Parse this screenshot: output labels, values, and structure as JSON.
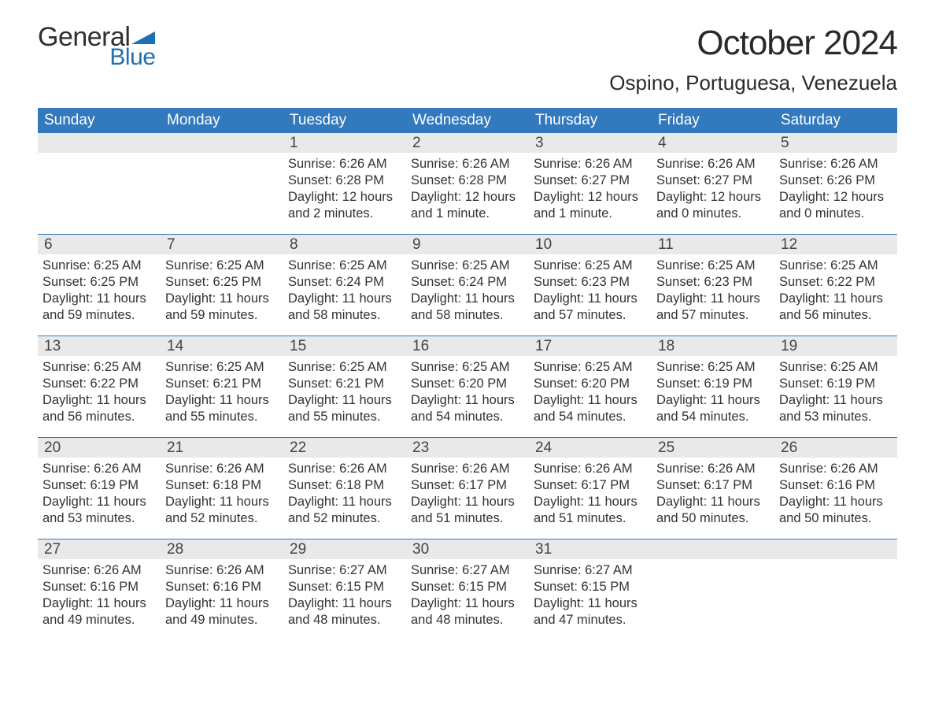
{
  "logo": {
    "text_top": "General",
    "text_bottom": "Blue",
    "text_top_color": "#2f2f2f",
    "text_bottom_color": "#1f6fb2",
    "flag_color": "#1f6fb2"
  },
  "header": {
    "month_title": "October 2024",
    "location": "Ospino, Portuguesa, Venezuela",
    "title_color": "#2a2a2a"
  },
  "calendar": {
    "header_bg": "#3279bd",
    "header_fg": "#ffffff",
    "daynum_bg": "#e9e9e9",
    "week_border_color": "#3279bd",
    "body_text_color": "#333333",
    "weekdays": [
      "Sunday",
      "Monday",
      "Tuesday",
      "Wednesday",
      "Thursday",
      "Friday",
      "Saturday"
    ],
    "weeks": [
      [
        {
          "num": "",
          "sunrise": "",
          "sunset": "",
          "daylight1": "",
          "daylight2": ""
        },
        {
          "num": "",
          "sunrise": "",
          "sunset": "",
          "daylight1": "",
          "daylight2": ""
        },
        {
          "num": "1",
          "sunrise": "Sunrise: 6:26 AM",
          "sunset": "Sunset: 6:28 PM",
          "daylight1": "Daylight: 12 hours",
          "daylight2": "and 2 minutes."
        },
        {
          "num": "2",
          "sunrise": "Sunrise: 6:26 AM",
          "sunset": "Sunset: 6:28 PM",
          "daylight1": "Daylight: 12 hours",
          "daylight2": "and 1 minute."
        },
        {
          "num": "3",
          "sunrise": "Sunrise: 6:26 AM",
          "sunset": "Sunset: 6:27 PM",
          "daylight1": "Daylight: 12 hours",
          "daylight2": "and 1 minute."
        },
        {
          "num": "4",
          "sunrise": "Sunrise: 6:26 AM",
          "sunset": "Sunset: 6:27 PM",
          "daylight1": "Daylight: 12 hours",
          "daylight2": "and 0 minutes."
        },
        {
          "num": "5",
          "sunrise": "Sunrise: 6:26 AM",
          "sunset": "Sunset: 6:26 PM",
          "daylight1": "Daylight: 12 hours",
          "daylight2": "and 0 minutes."
        }
      ],
      [
        {
          "num": "6",
          "sunrise": "Sunrise: 6:25 AM",
          "sunset": "Sunset: 6:25 PM",
          "daylight1": "Daylight: 11 hours",
          "daylight2": "and 59 minutes."
        },
        {
          "num": "7",
          "sunrise": "Sunrise: 6:25 AM",
          "sunset": "Sunset: 6:25 PM",
          "daylight1": "Daylight: 11 hours",
          "daylight2": "and 59 minutes."
        },
        {
          "num": "8",
          "sunrise": "Sunrise: 6:25 AM",
          "sunset": "Sunset: 6:24 PM",
          "daylight1": "Daylight: 11 hours",
          "daylight2": "and 58 minutes."
        },
        {
          "num": "9",
          "sunrise": "Sunrise: 6:25 AM",
          "sunset": "Sunset: 6:24 PM",
          "daylight1": "Daylight: 11 hours",
          "daylight2": "and 58 minutes."
        },
        {
          "num": "10",
          "sunrise": "Sunrise: 6:25 AM",
          "sunset": "Sunset: 6:23 PM",
          "daylight1": "Daylight: 11 hours",
          "daylight2": "and 57 minutes."
        },
        {
          "num": "11",
          "sunrise": "Sunrise: 6:25 AM",
          "sunset": "Sunset: 6:23 PM",
          "daylight1": "Daylight: 11 hours",
          "daylight2": "and 57 minutes."
        },
        {
          "num": "12",
          "sunrise": "Sunrise: 6:25 AM",
          "sunset": "Sunset: 6:22 PM",
          "daylight1": "Daylight: 11 hours",
          "daylight2": "and 56 minutes."
        }
      ],
      [
        {
          "num": "13",
          "sunrise": "Sunrise: 6:25 AM",
          "sunset": "Sunset: 6:22 PM",
          "daylight1": "Daylight: 11 hours",
          "daylight2": "and 56 minutes."
        },
        {
          "num": "14",
          "sunrise": "Sunrise: 6:25 AM",
          "sunset": "Sunset: 6:21 PM",
          "daylight1": "Daylight: 11 hours",
          "daylight2": "and 55 minutes."
        },
        {
          "num": "15",
          "sunrise": "Sunrise: 6:25 AM",
          "sunset": "Sunset: 6:21 PM",
          "daylight1": "Daylight: 11 hours",
          "daylight2": "and 55 minutes."
        },
        {
          "num": "16",
          "sunrise": "Sunrise: 6:25 AM",
          "sunset": "Sunset: 6:20 PM",
          "daylight1": "Daylight: 11 hours",
          "daylight2": "and 54 minutes."
        },
        {
          "num": "17",
          "sunrise": "Sunrise: 6:25 AM",
          "sunset": "Sunset: 6:20 PM",
          "daylight1": "Daylight: 11 hours",
          "daylight2": "and 54 minutes."
        },
        {
          "num": "18",
          "sunrise": "Sunrise: 6:25 AM",
          "sunset": "Sunset: 6:19 PM",
          "daylight1": "Daylight: 11 hours",
          "daylight2": "and 54 minutes."
        },
        {
          "num": "19",
          "sunrise": "Sunrise: 6:25 AM",
          "sunset": "Sunset: 6:19 PM",
          "daylight1": "Daylight: 11 hours",
          "daylight2": "and 53 minutes."
        }
      ],
      [
        {
          "num": "20",
          "sunrise": "Sunrise: 6:26 AM",
          "sunset": "Sunset: 6:19 PM",
          "daylight1": "Daylight: 11 hours",
          "daylight2": "and 53 minutes."
        },
        {
          "num": "21",
          "sunrise": "Sunrise: 6:26 AM",
          "sunset": "Sunset: 6:18 PM",
          "daylight1": "Daylight: 11 hours",
          "daylight2": "and 52 minutes."
        },
        {
          "num": "22",
          "sunrise": "Sunrise: 6:26 AM",
          "sunset": "Sunset: 6:18 PM",
          "daylight1": "Daylight: 11 hours",
          "daylight2": "and 52 minutes."
        },
        {
          "num": "23",
          "sunrise": "Sunrise: 6:26 AM",
          "sunset": "Sunset: 6:17 PM",
          "daylight1": "Daylight: 11 hours",
          "daylight2": "and 51 minutes."
        },
        {
          "num": "24",
          "sunrise": "Sunrise: 6:26 AM",
          "sunset": "Sunset: 6:17 PM",
          "daylight1": "Daylight: 11 hours",
          "daylight2": "and 51 minutes."
        },
        {
          "num": "25",
          "sunrise": "Sunrise: 6:26 AM",
          "sunset": "Sunset: 6:17 PM",
          "daylight1": "Daylight: 11 hours",
          "daylight2": "and 50 minutes."
        },
        {
          "num": "26",
          "sunrise": "Sunrise: 6:26 AM",
          "sunset": "Sunset: 6:16 PM",
          "daylight1": "Daylight: 11 hours",
          "daylight2": "and 50 minutes."
        }
      ],
      [
        {
          "num": "27",
          "sunrise": "Sunrise: 6:26 AM",
          "sunset": "Sunset: 6:16 PM",
          "daylight1": "Daylight: 11 hours",
          "daylight2": "and 49 minutes."
        },
        {
          "num": "28",
          "sunrise": "Sunrise: 6:26 AM",
          "sunset": "Sunset: 6:16 PM",
          "daylight1": "Daylight: 11 hours",
          "daylight2": "and 49 minutes."
        },
        {
          "num": "29",
          "sunrise": "Sunrise: 6:27 AM",
          "sunset": "Sunset: 6:15 PM",
          "daylight1": "Daylight: 11 hours",
          "daylight2": "and 48 minutes."
        },
        {
          "num": "30",
          "sunrise": "Sunrise: 6:27 AM",
          "sunset": "Sunset: 6:15 PM",
          "daylight1": "Daylight: 11 hours",
          "daylight2": "and 48 minutes."
        },
        {
          "num": "31",
          "sunrise": "Sunrise: 6:27 AM",
          "sunset": "Sunset: 6:15 PM",
          "daylight1": "Daylight: 11 hours",
          "daylight2": "and 47 minutes."
        },
        {
          "num": "",
          "sunrise": "",
          "sunset": "",
          "daylight1": "",
          "daylight2": ""
        },
        {
          "num": "",
          "sunrise": "",
          "sunset": "",
          "daylight1": "",
          "daylight2": ""
        }
      ]
    ]
  }
}
